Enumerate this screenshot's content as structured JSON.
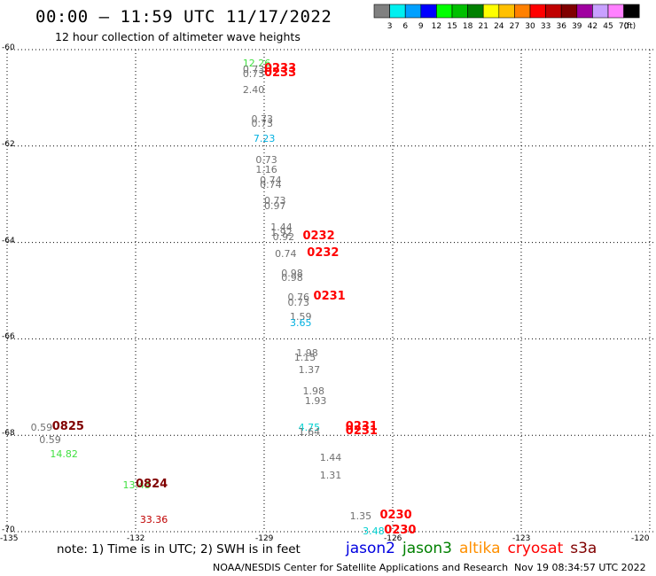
{
  "header": {
    "title": "00:00 – 11:59 UTC 11/17/2022",
    "subtitle": "12 hour collection of altimeter wave heights"
  },
  "legend": {
    "unit": "(ft)",
    "colors": [
      "#808080",
      "#00f0f0",
      "#00a0ff",
      "#0000ff",
      "#00ff00",
      "#00c000",
      "#008000",
      "#ffff00",
      "#ffc000",
      "#ff8000",
      "#ff0000",
      "#c00000",
      "#800000",
      "#a000a0",
      "#c8a0ff",
      "#ff80ff",
      "#000000"
    ],
    "labels": [
      "3",
      "6",
      "9",
      "12",
      "15",
      "18",
      "21",
      "24",
      "27",
      "30",
      "33",
      "36",
      "39",
      "42",
      "45",
      "70"
    ]
  },
  "axes": {
    "lat_labels": [
      {
        "text": "-60",
        "lat": -60
      },
      {
        "text": "-62",
        "lat": -62
      },
      {
        "text": "-64",
        "lat": -64
      },
      {
        "text": "-66",
        "lat": -66
      },
      {
        "text": "-68",
        "lat": -68
      },
      {
        "text": "-70",
        "lat": -70
      }
    ],
    "lon_labels": [
      {
        "text": "-135",
        "lon": -135
      },
      {
        "text": "-132",
        "lon": -132
      },
      {
        "text": "-129",
        "lon": -129
      },
      {
        "text": "-126",
        "lon": -126
      },
      {
        "text": "-123",
        "lon": -123
      },
      {
        "text": "-120",
        "lon": -120
      }
    ]
  },
  "observations": [
    {
      "text": "12.26",
      "color": "#40e040",
      "lon": -129.5,
      "lat": -60.3
    },
    {
      "text": "0.73",
      "color": "#707070",
      "lon": -129.5,
      "lat": -60.43
    },
    {
      "text": "0.73",
      "color": "#707070",
      "lon": -129.5,
      "lat": -60.52
    },
    {
      "text": "2.40",
      "color": "#707070",
      "lon": -129.5,
      "lat": -60.85
    },
    {
      "text": "0.73",
      "color": "#707070",
      "lon": -129.3,
      "lat": -61.45
    },
    {
      "text": "0.73",
      "color": "#707070",
      "lon": -129.3,
      "lat": -61.55
    },
    {
      "text": "7.23",
      "color": "#00b0e0",
      "lon": -129.25,
      "lat": -61.85
    },
    {
      "text": "0.73",
      "color": "#707070",
      "lon": -129.2,
      "lat": -62.3
    },
    {
      "text": "1.16",
      "color": "#707070",
      "lon": -129.2,
      "lat": -62.5
    },
    {
      "text": "0.74",
      "color": "#707070",
      "lon": -129.1,
      "lat": -62.72
    },
    {
      "text": "0.74",
      "color": "#707070",
      "lon": -129.1,
      "lat": -62.82
    },
    {
      "text": "0.73",
      "color": "#707070",
      "lon": -129.0,
      "lat": -63.15
    },
    {
      "text": "0.97",
      "color": "#707070",
      "lon": -129.0,
      "lat": -63.25
    },
    {
      "text": "1.44",
      "color": "#707070",
      "lon": -128.85,
      "lat": -63.7
    },
    {
      "text": "1.92",
      "color": "#707070",
      "lon": -128.85,
      "lat": -63.8
    },
    {
      "text": "0.92",
      "color": "#707070",
      "lon": -128.8,
      "lat": -63.9
    },
    {
      "text": "0.74",
      "color": "#707070",
      "lon": -128.75,
      "lat": -64.25
    },
    {
      "text": "0.98",
      "color": "#707070",
      "lon": -128.6,
      "lat": -64.65
    },
    {
      "text": "0.98",
      "color": "#707070",
      "lon": -128.6,
      "lat": -64.75
    },
    {
      "text": "0.76",
      "color": "#707070",
      "lon": -128.45,
      "lat": -65.15
    },
    {
      "text": "0.73",
      "color": "#707070",
      "lon": -128.45,
      "lat": -65.25
    },
    {
      "text": "1.59",
      "color": "#707070",
      "lon": -128.4,
      "lat": -65.55
    },
    {
      "text": "3.65",
      "color": "#00b0e0",
      "lon": -128.4,
      "lat": -65.68
    },
    {
      "text": "1.98",
      "color": "#707070",
      "lon": -128.25,
      "lat": -66.3
    },
    {
      "text": "1.15",
      "color": "#707070",
      "lon": -128.3,
      "lat": -66.4
    },
    {
      "text": "1.37",
      "color": "#707070",
      "lon": -128.2,
      "lat": -66.65
    },
    {
      "text": "1.98",
      "color": "#707070",
      "lon": -128.1,
      "lat": -67.1
    },
    {
      "text": "1.93",
      "color": "#707070",
      "lon": -128.05,
      "lat": -67.3
    },
    {
      "text": "4.75",
      "color": "#00d0d0",
      "lon": -128.2,
      "lat": -67.85
    },
    {
      "text": "1.64",
      "color": "#707070",
      "lon": -128.2,
      "lat": -67.95
    },
    {
      "text": "1.44",
      "color": "#707070",
      "lon": -127.7,
      "lat": -68.48
    },
    {
      "text": "1.31",
      "color": "#707070",
      "lon": -127.7,
      "lat": -68.85
    },
    {
      "text": "1.35",
      "color": "#707070",
      "lon": -127.0,
      "lat": -69.68
    },
    {
      "text": "3.48",
      "color": "#00d0d0",
      "lon": -126.7,
      "lat": -70.0
    },
    {
      "text": "0.59",
      "color": "#707070",
      "lon": -134.45,
      "lat": -67.85
    },
    {
      "text": "0.59",
      "color": "#707070",
      "lon": -134.25,
      "lat": -68.1
    },
    {
      "text": "14.82",
      "color": "#40e040",
      "lon": -134.0,
      "lat": -68.4
    },
    {
      "text": "13.43",
      "color": "#40e040",
      "lon": -132.3,
      "lat": -69.05
    },
    {
      "text": "33.36",
      "color": "#c00000",
      "lon": -131.9,
      "lat": -69.77
    }
  ],
  "times": [
    {
      "text": "0233",
      "color": "#ff0000",
      "lon": -129.0,
      "lat": -60.43
    },
    {
      "text": "0233",
      "color": "#ff0000",
      "lon": -129.0,
      "lat": -60.52
    },
    {
      "text": "0232",
      "color": "#ff0000",
      "lon": -128.1,
      "lat": -63.9
    },
    {
      "text": "0232",
      "color": "#ff0000",
      "lon": -128.0,
      "lat": -64.25
    },
    {
      "text": "0231",
      "color": "#ff0000",
      "lon": -127.85,
      "lat": -65.15
    },
    {
      "text": "0231",
      "color": "#ff0000",
      "lon": -127.1,
      "lat": -67.85
    },
    {
      "text": "0231",
      "color": "#ff0000",
      "lon": -127.1,
      "lat": -67.95
    },
    {
      "text": "0230",
      "color": "#ff0000",
      "lon": -126.3,
      "lat": -69.68
    },
    {
      "text": "0230",
      "color": "#ff0000",
      "lon": -126.2,
      "lat": -70.0
    },
    {
      "text": "0825",
      "color": "#800000",
      "lon": -133.95,
      "lat": -67.85
    },
    {
      "text": "0824",
      "color": "#800000",
      "lon": -132.0,
      "lat": -69.05
    }
  ],
  "note": "note: 1) Time is in UTC; 2) SWH is in feet",
  "satellites": [
    {
      "name": "jason2",
      "color": "#0000e0"
    },
    {
      "name": "jason3",
      "color": "#008000"
    },
    {
      "name": "altika",
      "color": "#ff9000"
    },
    {
      "name": "cryosat",
      "color": "#ff0000"
    },
    {
      "name": "s3a",
      "color": "#800000"
    }
  ],
  "footer": {
    "left": "NOAA/NESDIS Center for Satellite Applications and Research",
    "right": "Nov 19 08:34:57 UTC 2022"
  }
}
